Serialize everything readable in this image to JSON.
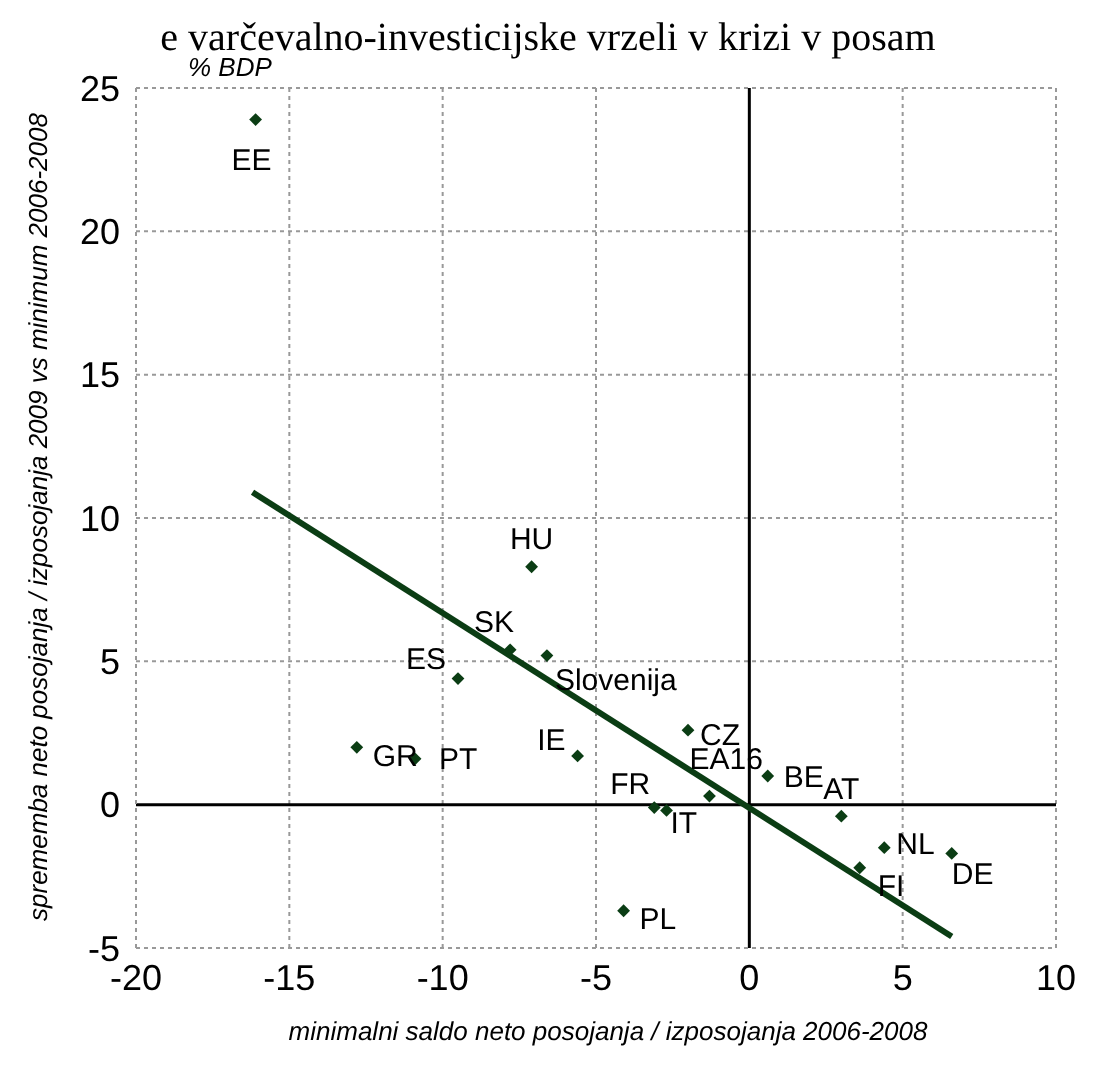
{
  "chart_data": {
    "type": "scatter",
    "title": "e varčevalno-investicijske vrzeli v krizi v posam",
    "xlabel": "minimalni saldo neto posojanja / izposojanja 2006-2008",
    "ylabel": "sprememba neto posojanja / izposojanja 2009 vs minimum 2006-2008",
    "xlim": [
      -20,
      10
    ],
    "xticks": [
      -20,
      -15,
      -10,
      -5,
      0,
      5,
      10
    ],
    "ylim": [
      -5,
      25
    ],
    "yticks": [
      -5,
      0,
      5,
      10,
      15,
      20,
      25
    ],
    "grid": true,
    "series": [
      {
        "marker": "diamond",
        "color": "#0b3d14",
        "x": [
          -16.1,
          -7.1,
          -7.8,
          -6.6,
          -9.5,
          -12.8,
          -10.9,
          -5.6,
          -2.0,
          -1.3,
          -3.1,
          -2.7,
          -4.1,
          0.6,
          3.0,
          4.4,
          3.6,
          6.6
        ],
        "values": [
          23.9,
          8.3,
          5.4,
          5.2,
          4.4,
          2.0,
          1.6,
          1.7,
          2.6,
          0.3,
          -0.1,
          -0.2,
          -3.7,
          1.0,
          -0.4,
          -1.5,
          -2.2,
          -1.7
        ]
      },
      {
        "type": "line",
        "color": "#0b3d14",
        "x": [
          -16.2,
          6.6
        ],
        "values": [
          10.9,
          -4.6
        ]
      }
    ],
    "annotations": [
      "% BDP",
      {
        "text": "EE",
        "x": -16.1,
        "y": 23.9
      },
      {
        "text": "HU",
        "x": -7.1,
        "y": 8.3
      },
      {
        "text": "SK",
        "x": -7.8,
        "y": 5.4
      },
      {
        "text": "Slovenija",
        "x": -6.6,
        "y": 5.2
      },
      {
        "text": "ES",
        "x": -9.5,
        "y": 4.4
      },
      {
        "text": "GR",
        "x": -12.8,
        "y": 2.0
      },
      {
        "text": "PT",
        "x": -10.9,
        "y": 1.6
      },
      {
        "text": "IE",
        "x": -5.6,
        "y": 1.7
      },
      {
        "text": "CZ",
        "x": -2.0,
        "y": 2.6
      },
      {
        "text": "EA16",
        "x": -1.3,
        "y": 0.3
      },
      {
        "text": "FR",
        "x": -3.1,
        "y": -0.1
      },
      {
        "text": "IT",
        "x": -2.7,
        "y": -0.2
      },
      {
        "text": "PL",
        "x": -4.1,
        "y": -3.7
      },
      {
        "text": "BE",
        "x": 0.6,
        "y": 1.0
      },
      {
        "text": "AT",
        "x": 3.0,
        "y": -0.4
      },
      {
        "text": "NL",
        "x": 4.4,
        "y": -1.5
      },
      {
        "text": "FI",
        "x": 3.6,
        "y": -2.2
      },
      {
        "text": "DE",
        "x": 6.6,
        "y": -1.7
      }
    ]
  }
}
